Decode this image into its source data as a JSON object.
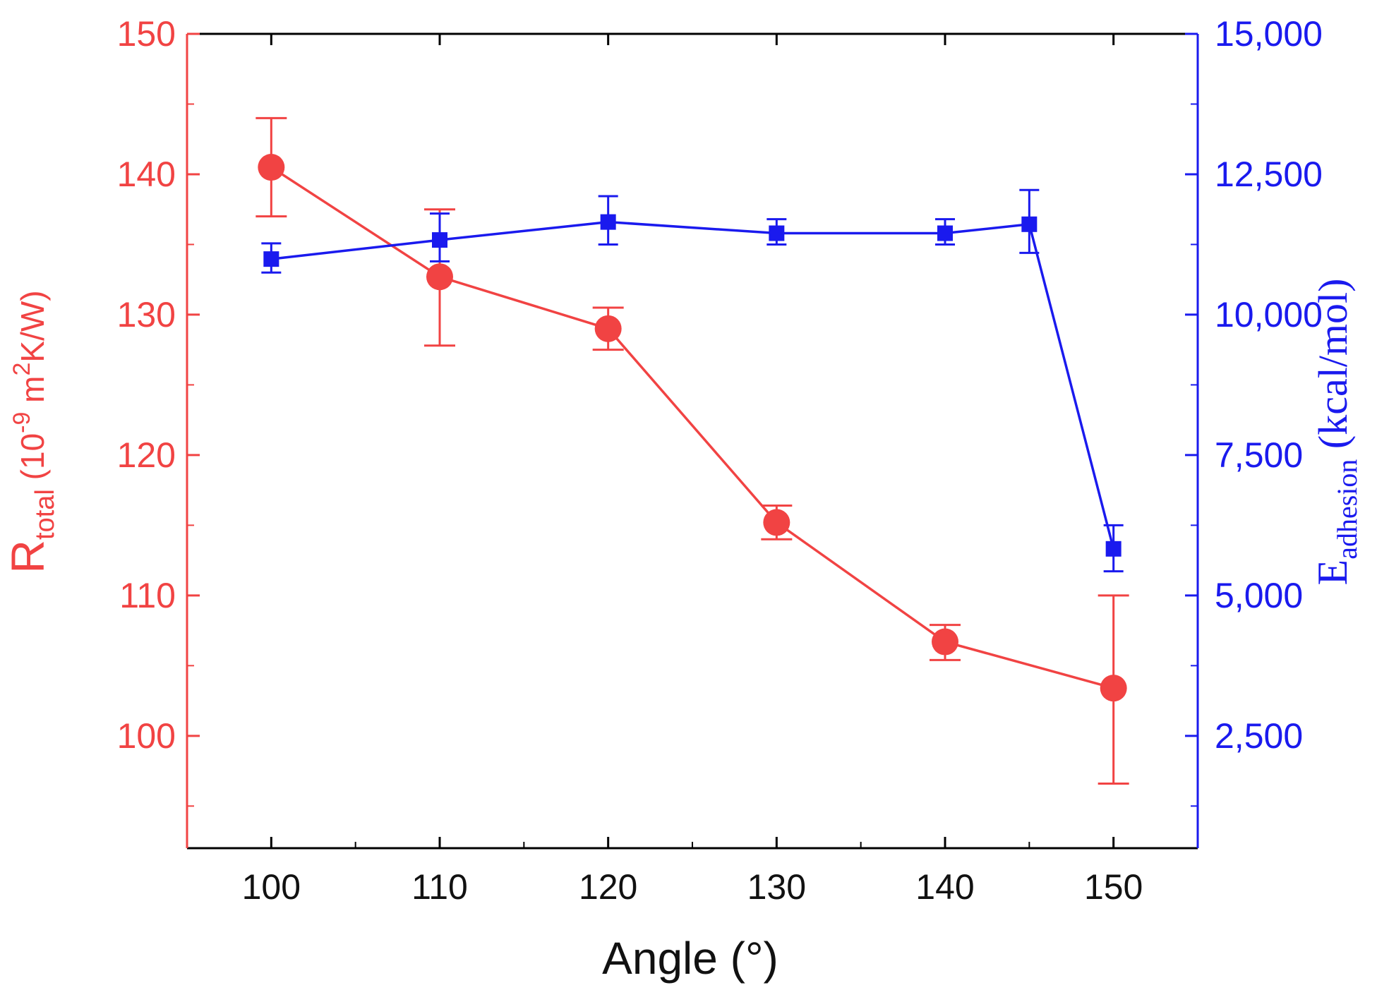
{
  "chart_data": {
    "type": "line",
    "xlabel": "Angle (°)",
    "x_ticks": [
      "100",
      "110",
      "120",
      "130",
      "140",
      "150"
    ],
    "xlim": [
      95,
      155
    ],
    "left_axis": {
      "label_main": "R",
      "label_sub": "total",
      "label_rest": " (10",
      "label_sup1": "-9",
      "label_rest2": " m",
      "label_sup2": "2",
      "label_rest3": "K/W)",
      "ticks": [
        "100",
        "110",
        "120",
        "130",
        "140",
        "150"
      ],
      "ylim": [
        92,
        150
      ],
      "color": "#f14343"
    },
    "right_axis": {
      "label_main": "E",
      "label_sub": "adhesion",
      "label_rest": " (kcal/mol)",
      "ticks": [
        "2,500",
        "5,000",
        "7,500",
        "10,000",
        "12,500",
        "15,000"
      ],
      "ylim": [
        500,
        15000
      ],
      "color": "#1a1aee"
    },
    "series": [
      {
        "axis": "left",
        "color": "#f14343",
        "marker": "circle",
        "x": [
          100,
          110,
          120,
          130,
          140,
          150
        ],
        "y": [
          140.5,
          132.7,
          129.0,
          115.2,
          106.7,
          103.4
        ],
        "err_low": [
          137.0,
          127.8,
          127.5,
          114.0,
          105.4,
          96.6
        ],
        "err_high": [
          144.0,
          137.5,
          130.5,
          116.4,
          107.9,
          110.0
        ]
      },
      {
        "axis": "right",
        "color": "#1a1aee",
        "marker": "square",
        "x": [
          100,
          110,
          120,
          130,
          140,
          145,
          150
        ],
        "y": [
          10990,
          11330,
          11650,
          11450,
          11450,
          11610,
          5830
        ],
        "err_low": [
          10750,
          10950,
          11250,
          11250,
          11250,
          11100,
          5430
        ],
        "err_high": [
          11270,
          11800,
          12110,
          11700,
          11700,
          12220,
          6250
        ]
      }
    ]
  }
}
